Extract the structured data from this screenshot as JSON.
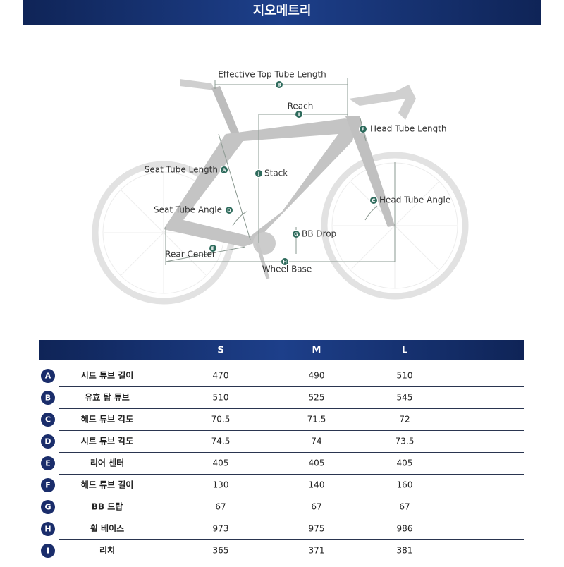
{
  "header": {
    "title": "지오메트리"
  },
  "diagram": {
    "annotations": [
      {
        "letter": "B",
        "label": "Effective Top Tube Length"
      },
      {
        "letter": "I",
        "label": "Reach"
      },
      {
        "letter": "F",
        "label": "Head Tube Length"
      },
      {
        "letter": "J",
        "label": "Stack"
      },
      {
        "letter": "A",
        "label": "Seat Tube Length"
      },
      {
        "letter": "D",
        "label": "Seat Tube Angle"
      },
      {
        "letter": "C",
        "label": "Head Tube Angle"
      },
      {
        "letter": "G",
        "label": "BB Drop"
      },
      {
        "letter": "E",
        "label": "Rear Center"
      },
      {
        "letter": "H",
        "label": "Wheel Base"
      }
    ]
  },
  "table": {
    "columns": [
      "S",
      "M",
      "L"
    ],
    "rows": [
      {
        "letter": "A",
        "name": "시트 튜브 길이",
        "values": [
          470,
          490,
          510
        ]
      },
      {
        "letter": "B",
        "name": "유효 탑 튜브",
        "values": [
          510,
          525,
          545
        ]
      },
      {
        "letter": "C",
        "name": "헤드 튜브 각도",
        "values": [
          70.5,
          71.5,
          72
        ]
      },
      {
        "letter": "D",
        "name": "시트 튜브 각도",
        "values": [
          74.5,
          74,
          73.5
        ]
      },
      {
        "letter": "E",
        "name": "리어 센터",
        "values": [
          405,
          405,
          405
        ]
      },
      {
        "letter": "F",
        "name": "헤드 튜브 길이",
        "values": [
          130,
          140,
          160
        ]
      },
      {
        "letter": "G",
        "name": "BB 드랍",
        "values": [
          67,
          67,
          67
        ]
      },
      {
        "letter": "H",
        "name": "휠 베이스",
        "values": [
          973,
          975,
          986
        ]
      },
      {
        "letter": "I",
        "name": "리치",
        "values": [
          365,
          371,
          381
        ]
      }
    ]
  }
}
